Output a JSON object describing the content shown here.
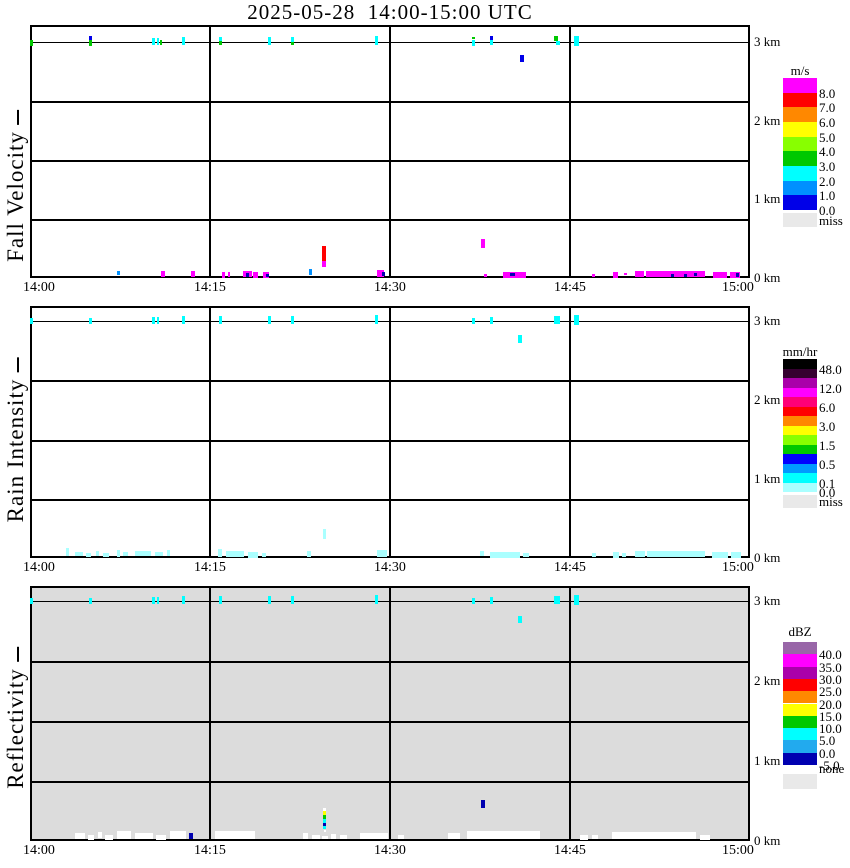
{
  "title": "2025-05-28  14:00-15:00 UTC",
  "palette": {
    "G": "#00C800",
    "C": "#00FFFF",
    "B": "#0000E8",
    "D": "#0090FF",
    "M": "#FF00FF",
    "R": "#FF0000",
    "N": "#0000B0",
    "P": "#AAFFFF",
    "Y": "#FFFF00",
    "W": "#FFFFFF"
  },
  "chart_data": [
    {
      "type": "heatmap",
      "ylabel": "Fall Velocity",
      "unit": "m/s",
      "background": "#FFFFFF",
      "x_ticks": [
        "14:00",
        "14:15",
        "14:30",
        "14:45",
        "15:00"
      ],
      "x_range_minutes": [
        0,
        60
      ],
      "height_labels": [
        "3 km",
        "2 km",
        "1 km",
        "0 km"
      ],
      "ylim_km": [
        0,
        3.2
      ],
      "colorbar": {
        "unit": "m/s",
        "cells": [
          {
            "c": "#FF00FF",
            "l": "8.0"
          },
          {
            "c": "#FF0000",
            "l": "7.0"
          },
          {
            "c": "#FF8800",
            "l": "6.0"
          },
          {
            "c": "#FFFF00",
            "l": "5.0"
          },
          {
            "c": "#88FF00",
            "l": "4.0"
          },
          {
            "c": "#00C800",
            "l": "3.0"
          },
          {
            "c": "#00FFFF",
            "l": "2.0"
          },
          {
            "c": "#0090FF",
            "l": "1.0"
          },
          {
            "c": "#0000E8",
            "l": "0.0"
          }
        ],
        "missing": {
          "c": "#E9E9E9",
          "l": "miss"
        }
      },
      "points": [
        [
          0,
          0.25,
          2.96,
          3.03,
          "G"
        ],
        [
          4.9,
          5.17,
          3.03,
          3.08,
          "B"
        ],
        [
          4.9,
          5.17,
          2.96,
          3.03,
          "G"
        ],
        [
          10.15,
          10.4,
          2.96,
          3.05,
          "C"
        ],
        [
          10.58,
          10.75,
          2.96,
          3.05,
          "C"
        ],
        [
          10.83,
          11.0,
          2.97,
          3.03,
          "G"
        ],
        [
          12.67,
          12.92,
          2.96,
          3.06,
          "C"
        ],
        [
          15.75,
          16.0,
          3.01,
          3.06,
          "C"
        ],
        [
          15.75,
          16.0,
          2.96,
          3.01,
          "G"
        ],
        [
          19.83,
          20.08,
          2.96,
          3.06,
          "C"
        ],
        [
          21.75,
          22.0,
          3.0,
          3.06,
          "C"
        ],
        [
          21.75,
          22.0,
          2.96,
          3.0,
          "G"
        ],
        [
          28.75,
          29.0,
          2.96,
          3.07,
          "C"
        ],
        [
          36.83,
          37.08,
          3.03,
          3.06,
          "G"
        ],
        [
          36.83,
          37.08,
          2.96,
          3.03,
          "C"
        ],
        [
          38.33,
          38.58,
          3.02,
          3.08,
          "B"
        ],
        [
          38.33,
          38.58,
          2.96,
          3.02,
          "C"
        ],
        [
          43.67,
          44.0,
          3.01,
          3.07,
          "G"
        ],
        [
          43.83,
          44.17,
          2.96,
          3.01,
          "C"
        ],
        [
          45.33,
          45.75,
          2.95,
          3.08,
          "C"
        ],
        [
          40.83,
          41.17,
          2.75,
          2.84,
          "B"
        ],
        [
          7.25,
          7.5,
          0.04,
          0.09,
          "D"
        ],
        [
          10.92,
          11.25,
          0.01,
          0.09,
          "M"
        ],
        [
          13.42,
          13.75,
          0.01,
          0.09,
          "M"
        ],
        [
          16.0,
          16.25,
          0.01,
          0.08,
          "M"
        ],
        [
          16.5,
          16.67,
          0.02,
          0.08,
          "M"
        ],
        [
          17.75,
          18.5,
          0.01,
          0.09,
          "M"
        ],
        [
          18.0,
          18.25,
          0.01,
          0.06,
          "N"
        ],
        [
          18.58,
          19.0,
          0.01,
          0.08,
          "M"
        ],
        [
          19.42,
          19.92,
          0.01,
          0.08,
          "M"
        ],
        [
          19.67,
          19.92,
          0.01,
          0.05,
          "N"
        ],
        [
          23.25,
          23.5,
          0.03,
          0.11,
          "D"
        ],
        [
          24.33,
          24.67,
          0.19,
          0.41,
          "R"
        ],
        [
          24.33,
          24.67,
          0.15,
          0.22,
          "M"
        ],
        [
          28.92,
          29.5,
          0.01,
          0.1,
          "M"
        ],
        [
          29.33,
          29.58,
          0.03,
          0.08,
          "N"
        ],
        [
          37.58,
          37.92,
          0.38,
          0.5,
          "M"
        ],
        [
          37.83,
          38.08,
          0.01,
          0.05,
          "M"
        ],
        [
          39.42,
          41.33,
          0.01,
          0.08,
          "M"
        ],
        [
          40.0,
          40.42,
          0.02,
          0.06,
          "N"
        ],
        [
          46.83,
          47.08,
          0.01,
          0.05,
          "M"
        ],
        [
          48.58,
          49.0,
          0.01,
          0.08,
          "M"
        ],
        [
          49.5,
          49.75,
          0.03,
          0.06,
          "M"
        ],
        [
          50.42,
          51.17,
          0.01,
          0.09,
          "M"
        ],
        [
          51.33,
          56.25,
          0.01,
          0.09,
          "M"
        ],
        [
          53.42,
          53.67,
          0.01,
          0.05,
          "N"
        ],
        [
          54.5,
          54.75,
          0.01,
          0.05,
          "N"
        ],
        [
          55.33,
          55.58,
          0.02,
          0.06,
          "N"
        ],
        [
          56.92,
          58.08,
          0.01,
          0.08,
          "M"
        ],
        [
          58.33,
          59.17,
          0.01,
          0.08,
          "M"
        ],
        [
          58.83,
          59.08,
          0.01,
          0.06,
          "N"
        ]
      ]
    },
    {
      "type": "heatmap",
      "ylabel": "Rain Intensity",
      "unit": "mm/hr",
      "background": "#FFFFFF",
      "x_ticks": [
        "14:00",
        "14:15",
        "14:30",
        "14:45",
        "15:00"
      ],
      "x_range_minutes": [
        0,
        60
      ],
      "height_labels": [
        "3 km",
        "2 km",
        "1 km",
        "0 km"
      ],
      "ylim_km": [
        0,
        3.2
      ],
      "colorbar": {
        "unit": "mm/hr",
        "cells": [
          {
            "c": "#000000",
            "l": "48.0"
          },
          {
            "c": "#350030",
            "l": ""
          },
          {
            "c": "#AA00AA",
            "l": "12.0"
          },
          {
            "c": "#FF00FF",
            "l": ""
          },
          {
            "c": "#FF0077",
            "l": "6.0"
          },
          {
            "c": "#FF0000",
            "l": ""
          },
          {
            "c": "#FF8800",
            "l": "3.0"
          },
          {
            "c": "#FFFF00",
            "l": ""
          },
          {
            "c": "#88FF00",
            "l": "1.5"
          },
          {
            "c": "#00C800",
            "l": ""
          },
          {
            "c": "#0000FF",
            "l": "0.5"
          },
          {
            "c": "#0099FF",
            "l": ""
          },
          {
            "c": "#00FFFF",
            "l": "0.1"
          },
          {
            "c": "#AAFFFF",
            "l": "0.0"
          }
        ],
        "missing": {
          "c": "#E9E9E9",
          "l": "miss"
        }
      },
      "points": [
        [
          0,
          0.25,
          2.96,
          3.04,
          "C"
        ],
        [
          4.9,
          5.17,
          2.96,
          3.04,
          "C"
        ],
        [
          10.15,
          10.4,
          2.96,
          3.05,
          "C"
        ],
        [
          10.58,
          10.75,
          2.96,
          3.05,
          "C"
        ],
        [
          12.67,
          12.92,
          2.96,
          3.06,
          "C"
        ],
        [
          15.75,
          16.0,
          2.96,
          3.06,
          "C"
        ],
        [
          19.83,
          20.08,
          2.96,
          3.06,
          "C"
        ],
        [
          21.75,
          22.0,
          2.96,
          3.06,
          "C"
        ],
        [
          28.75,
          29.0,
          2.96,
          3.07,
          "C"
        ],
        [
          36.83,
          37.08,
          2.96,
          3.04,
          "C"
        ],
        [
          38.33,
          38.58,
          2.96,
          3.05,
          "C"
        ],
        [
          43.67,
          44.17,
          2.96,
          3.06,
          "C"
        ],
        [
          45.33,
          45.75,
          2.95,
          3.08,
          "C"
        ],
        [
          40.67,
          41.0,
          2.72,
          2.82,
          "C"
        ],
        [
          24.42,
          24.67,
          0.24,
          0.37,
          "P"
        ],
        [
          3.0,
          3.25,
          0.03,
          0.13,
          "P"
        ],
        [
          3.75,
          4.42,
          0.03,
          0.08,
          "P"
        ],
        [
          4.67,
          5.08,
          0.01,
          0.06,
          "P"
        ],
        [
          5.5,
          5.75,
          0.03,
          0.09,
          "P"
        ],
        [
          6.08,
          6.58,
          0.01,
          0.06,
          "P"
        ],
        [
          7.25,
          7.5,
          0.01,
          0.1,
          "P"
        ],
        [
          7.75,
          8.17,
          0.03,
          0.08,
          "P"
        ],
        [
          8.75,
          10.08,
          0.03,
          0.09,
          "P"
        ],
        [
          10.42,
          11.08,
          0.03,
          0.08,
          "P"
        ],
        [
          11.42,
          11.67,
          0.03,
          0.1,
          "P"
        ],
        [
          15.67,
          16.0,
          0.01,
          0.11,
          "P"
        ],
        [
          16.33,
          17.83,
          0.01,
          0.09,
          "P"
        ],
        [
          18.17,
          19.0,
          0.01,
          0.08,
          "P"
        ],
        [
          19.33,
          19.67,
          0.01,
          0.06,
          "P"
        ],
        [
          23.08,
          23.42,
          0.01,
          0.09,
          "P"
        ],
        [
          28.92,
          29.75,
          0.01,
          0.1,
          "P"
        ],
        [
          37.5,
          37.83,
          0.03,
          0.09,
          "P"
        ],
        [
          38.33,
          40.83,
          0.01,
          0.08,
          "P"
        ],
        [
          41.08,
          41.58,
          0.01,
          0.06,
          "P"
        ],
        [
          46.83,
          47.17,
          0.01,
          0.06,
          "P"
        ],
        [
          48.58,
          49.08,
          0.01,
          0.08,
          "P"
        ],
        [
          49.33,
          49.67,
          0.01,
          0.06,
          "P"
        ],
        [
          50.42,
          51.25,
          0.01,
          0.09,
          "P"
        ],
        [
          51.42,
          56.25,
          0.01,
          0.09,
          "P"
        ],
        [
          56.83,
          58.17,
          0.01,
          0.08,
          "P"
        ],
        [
          58.42,
          59.25,
          0.01,
          0.08,
          "P"
        ]
      ]
    },
    {
      "type": "heatmap",
      "ylabel": "Reflectivity",
      "unit": "dBZ",
      "background": "#DCDCDC",
      "x_ticks": [
        "14:00",
        "14:15",
        "14:30",
        "14:45",
        "15:00"
      ],
      "x_range_minutes": [
        0,
        60
      ],
      "height_labels": [
        "3 km",
        "2 km",
        "1 km",
        "0 km"
      ],
      "ylim_km": [
        0,
        3.2
      ],
      "colorbar": {
        "unit": "dBZ",
        "cells": [
          {
            "c": "#9966A8",
            "l": "40.0"
          },
          {
            "c": "#FF00FF",
            "l": "35.0"
          },
          {
            "c": "#AA00AA",
            "l": "30.0"
          },
          {
            "c": "#FF0000",
            "l": "25.0"
          },
          {
            "c": "#FF8800",
            "l": "20.0"
          },
          {
            "c": "#FFFF00",
            "l": "15.0"
          },
          {
            "c": "#00C800",
            "l": "10.0"
          },
          {
            "c": "#00FFFF",
            "l": "5.0"
          },
          {
            "c": "#22AAEE",
            "l": "0.0"
          },
          {
            "c": "#0000B0",
            "l": "-5.0"
          }
        ],
        "missing": {
          "c": "#E9E9E9",
          "l": "none"
        }
      },
      "points": [
        [
          0,
          0.25,
          2.96,
          3.04,
          "C"
        ],
        [
          4.9,
          5.17,
          2.96,
          3.04,
          "C"
        ],
        [
          10.15,
          10.4,
          2.96,
          3.05,
          "C"
        ],
        [
          10.58,
          10.75,
          2.96,
          3.05,
          "C"
        ],
        [
          12.67,
          12.92,
          2.96,
          3.06,
          "C"
        ],
        [
          15.75,
          16.0,
          2.96,
          3.06,
          "C"
        ],
        [
          19.83,
          20.08,
          2.96,
          3.06,
          "C"
        ],
        [
          21.75,
          22.0,
          2.96,
          3.06,
          "C"
        ],
        [
          28.75,
          29.0,
          2.96,
          3.07,
          "C"
        ],
        [
          36.83,
          37.08,
          2.96,
          3.04,
          "C"
        ],
        [
          38.33,
          38.58,
          2.96,
          3.05,
          "C"
        ],
        [
          43.67,
          44.17,
          2.96,
          3.06,
          "C"
        ],
        [
          45.33,
          45.75,
          2.95,
          3.08,
          "C"
        ],
        [
          40.67,
          41.0,
          2.72,
          2.81,
          "C"
        ],
        [
          24.42,
          24.67,
          0.375,
          0.41,
          "W"
        ],
        [
          24.42,
          24.67,
          0.325,
          0.375,
          "Y"
        ],
        [
          24.42,
          24.67,
          0.275,
          0.325,
          "G"
        ],
        [
          24.42,
          24.67,
          0.225,
          0.275,
          "C"
        ],
        [
          24.42,
          24.67,
          0.19,
          0.225,
          "N"
        ],
        [
          24.42,
          24.67,
          0.15,
          0.19,
          "C"
        ],
        [
          24.5,
          24.67,
          0.11,
          0.14,
          "W"
        ],
        [
          37.58,
          37.92,
          0.41,
          0.51,
          "N"
        ],
        [
          13.25,
          13.58,
          0.03,
          0.1,
          "N"
        ],
        [
          3.75,
          4.58,
          0.03,
          0.1,
          "W"
        ],
        [
          4.83,
          5.33,
          0.02,
          0.08,
          "W"
        ],
        [
          5.67,
          6.0,
          0.03,
          0.11,
          "W"
        ],
        [
          6.25,
          6.92,
          0.02,
          0.08,
          "W"
        ],
        [
          7.25,
          8.42,
          0.02,
          0.12,
          "W"
        ],
        [
          8.75,
          10.25,
          0.02,
          0.1,
          "W"
        ],
        [
          10.5,
          11.33,
          0.02,
          0.08,
          "W"
        ],
        [
          11.67,
          13.0,
          0.02,
          0.12,
          "W"
        ],
        [
          15.42,
          18.75,
          0.02,
          0.12,
          "W"
        ],
        [
          22.75,
          23.17,
          0.03,
          0.1,
          "W"
        ],
        [
          23.5,
          24.17,
          0.02,
          0.07,
          "W"
        ],
        [
          24.33,
          24.83,
          0.02,
          0.06,
          "W"
        ],
        [
          25.08,
          25.5,
          0.03,
          0.09,
          "W"
        ],
        [
          25.83,
          26.42,
          0.02,
          0.07,
          "W"
        ],
        [
          27.5,
          29.83,
          0.02,
          0.1,
          "W"
        ],
        [
          30.67,
          31.17,
          0.02,
          0.07,
          "W"
        ],
        [
          34.83,
          35.83,
          0.02,
          0.1,
          "W"
        ],
        [
          36.42,
          42.5,
          0.02,
          0.12,
          "W"
        ],
        [
          45.83,
          46.5,
          0.02,
          0.08,
          "W"
        ],
        [
          46.83,
          47.33,
          0.02,
          0.07,
          "W"
        ],
        [
          48.5,
          55.5,
          0.02,
          0.11,
          "W"
        ],
        [
          55.83,
          56.67,
          0.02,
          0.08,
          "W"
        ]
      ]
    }
  ]
}
